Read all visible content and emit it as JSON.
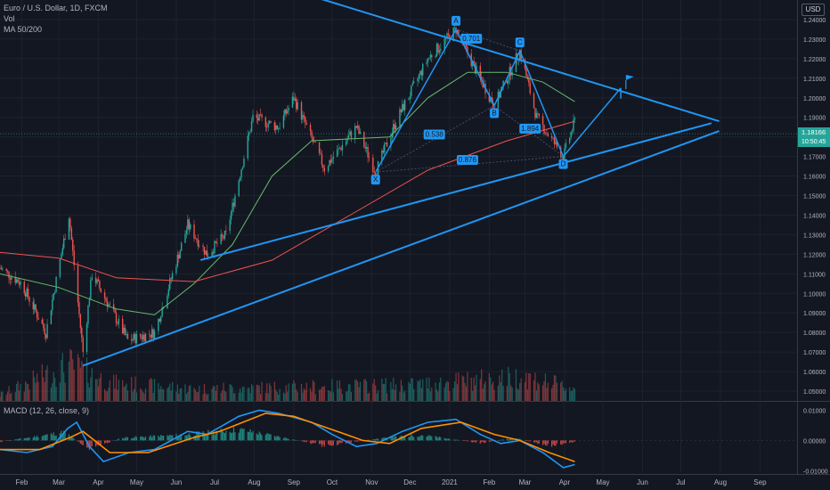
{
  "header": {
    "symbol": "Euro / U.S. Dollar, 1D, FXCM",
    "vol_label": "Vol",
    "ma_label": "MA 50/200",
    "currency": "USD",
    "macd_label": "MACD (12, 26, close, 9)"
  },
  "price_tag": {
    "price": "1.18166",
    "countdown": "10:50:45"
  },
  "colors": {
    "background": "#131722",
    "up": "#26a69a",
    "down": "#ef5350",
    "ma50": "#66bb6a",
    "ma200": "#ef5350",
    "drawing": "#2196f3",
    "macd": "#2196f3",
    "signal": "#ff8f00"
  },
  "chart_data": [
    {
      "type": "line",
      "panel": "price",
      "title": "Euro / U.S. Dollar, 1D, FXCM",
      "x_axis": {
        "type": "date",
        "range": [
          "2020-01-15",
          "2021-09-30"
        ],
        "tick_labels": [
          {
            "date": "2020-02-01",
            "label": "Feb"
          },
          {
            "date": "2020-03-01",
            "label": "Mar"
          },
          {
            "date": "2020-04-01",
            "label": "Apr"
          },
          {
            "date": "2020-05-01",
            "label": "May"
          },
          {
            "date": "2020-06-01",
            "label": "Jun"
          },
          {
            "date": "2020-07-01",
            "label": "Jul"
          },
          {
            "date": "2020-08-01",
            "label": "Aug"
          },
          {
            "date": "2020-09-01",
            "label": "Sep"
          },
          {
            "date": "2020-10-01",
            "label": "Oct"
          },
          {
            "date": "2020-11-01",
            "label": "Nov"
          },
          {
            "date": "2020-12-01",
            "label": "Dec"
          },
          {
            "date": "2021-01-01",
            "label": "2021"
          },
          {
            "date": "2021-02-01",
            "label": "Feb"
          },
          {
            "date": "2021-03-01",
            "label": "Mar"
          },
          {
            "date": "2021-04-01",
            "label": "Apr"
          },
          {
            "date": "2021-05-01",
            "label": "May"
          },
          {
            "date": "2021-06-01",
            "label": "Jun"
          },
          {
            "date": "2021-07-01",
            "label": "Jul"
          },
          {
            "date": "2021-08-01",
            "label": "Aug"
          },
          {
            "date": "2021-09-01",
            "label": "Sep"
          }
        ]
      },
      "y_axis": {
        "range": [
          1.045,
          1.25
        ],
        "tick_labels": [
          "1.24000",
          "1.23000",
          "1.22000",
          "1.21000",
          "1.20000",
          "1.19000",
          "1.18000",
          "1.17000",
          "1.16000",
          "1.15000",
          "1.14000",
          "1.13000",
          "1.12000",
          "1.11000",
          "1.10000",
          "1.09000",
          "1.08000",
          "1.07000",
          "1.06000",
          "1.05000"
        ],
        "last_price": 1.18166
      },
      "price_path": [
        [
          "2020-01-15",
          1.113
        ],
        [
          "2020-02-01",
          1.105
        ],
        [
          "2020-02-20",
          1.08
        ],
        [
          "2020-03-09",
          1.14
        ],
        [
          "2020-03-20",
          1.07
        ],
        [
          "2020-03-27",
          1.11
        ],
        [
          "2020-04-24",
          1.076
        ],
        [
          "2020-05-15",
          1.08
        ],
        [
          "2020-06-10",
          1.135
        ],
        [
          "2020-06-25",
          1.12
        ],
        [
          "2020-07-10",
          1.13
        ],
        [
          "2020-07-31",
          1.19
        ],
        [
          "2020-08-20",
          1.185
        ],
        [
          "2020-09-01",
          1.2
        ],
        [
          "2020-09-25",
          1.164
        ],
        [
          "2020-10-20",
          1.185
        ],
        [
          "2020-11-04",
          1.162
        ],
        [
          "2020-11-20",
          1.188
        ],
        [
          "2020-12-15",
          1.22
        ],
        [
          "2021-01-06",
          1.235
        ],
        [
          "2021-01-20",
          1.216
        ],
        [
          "2021-02-05",
          1.196
        ],
        [
          "2021-02-25",
          1.224
        ],
        [
          "2021-03-10",
          1.19
        ],
        [
          "2021-03-31",
          1.17
        ],
        [
          "2021-04-09",
          1.188
        ]
      ],
      "series": [
        {
          "name": "MA 50",
          "values": [
            [
              "2020-01-15",
              1.11
            ],
            [
              "2020-03-01",
              1.103
            ],
            [
              "2020-04-15",
              1.092
            ],
            [
              "2020-05-15",
              1.089
            ],
            [
              "2020-06-15",
              1.105
            ],
            [
              "2020-07-15",
              1.125
            ],
            [
              "2020-08-15",
              1.16
            ],
            [
              "2020-09-15",
              1.178
            ],
            [
              "2020-10-15",
              1.179
            ],
            [
              "2020-11-15",
              1.18
            ],
            [
              "2020-12-15",
              1.2
            ],
            [
              "2021-01-15",
              1.213
            ],
            [
              "2021-02-15",
              1.213
            ],
            [
              "2021-03-15",
              1.208
            ],
            [
              "2021-04-09",
              1.198
            ]
          ]
        },
        {
          "name": "MA 200",
          "values": [
            [
              "2020-01-15",
              1.121
            ],
            [
              "2020-03-01",
              1.118
            ],
            [
              "2020-04-15",
              1.108
            ],
            [
              "2020-06-15",
              1.106
            ],
            [
              "2020-08-15",
              1.117
            ],
            [
              "2020-10-15",
              1.14
            ],
            [
              "2020-12-15",
              1.163
            ],
            [
              "2021-02-15",
              1.178
            ],
            [
              "2021-04-09",
              1.188
            ]
          ]
        }
      ],
      "volume_range": [
        0,
        1
      ],
      "volume_path": [
        [
          "2020-01-15",
          0.15
        ],
        [
          "2020-03-10",
          0.9
        ],
        [
          "2020-04-10",
          0.45
        ],
        [
          "2020-06-15",
          0.3
        ],
        [
          "2020-09-15",
          0.35
        ],
        [
          "2020-12-01",
          0.4
        ],
        [
          "2021-03-01",
          0.6
        ],
        [
          "2021-04-09",
          0.3
        ]
      ],
      "harmonic_pattern": {
        "points": [
          {
            "label": "X",
            "date": "2020-11-04",
            "price": 1.162
          },
          {
            "label": "A",
            "date": "2021-01-06",
            "price": 1.235
          },
          {
            "label": "B",
            "date": "2021-02-05",
            "price": 1.196
          },
          {
            "label": "C",
            "date": "2021-02-25",
            "price": 1.224
          },
          {
            "label": "D",
            "date": "2021-03-31",
            "price": 1.17
          }
        ],
        "ratios": [
          {
            "label": "0.538",
            "date": "2020-12-20",
            "price": 1.181
          },
          {
            "label": "0.701",
            "date": "2021-01-18",
            "price": 1.23
          },
          {
            "label": "1.894",
            "date": "2021-03-05",
            "price": 1.184
          },
          {
            "label": "0.876",
            "date": "2021-01-15",
            "price": 1.168
          }
        ],
        "projection": [
          [
            "2021-03-31",
            1.17
          ],
          [
            "2021-05-15",
            1.205
          ]
        ],
        "flag": {
          "date": "2021-05-19",
          "price": 1.209
        }
      },
      "trendlines": [
        {
          "name": "upper-resistance",
          "from": [
            "2020-09-15",
            1.252
          ],
          "to": [
            "2021-07-31",
            1.188
          ]
        },
        {
          "name": "support-1",
          "from": [
            "2020-06-20",
            1.117
          ],
          "to": [
            "2021-07-25",
            1.187
          ]
        },
        {
          "name": "support-2",
          "from": [
            "2020-03-20",
            1.063
          ],
          "to": [
            "2021-07-31",
            1.183
          ]
        }
      ]
    },
    {
      "type": "line",
      "panel": "macd",
      "title": "MACD (12, 26, close, 9)",
      "y_axis": {
        "range": [
          -0.0105,
          0.0125
        ],
        "tick_labels": [
          "0.01000",
          "0.00000",
          "-0.01000"
        ]
      },
      "series": [
        {
          "name": "MACD",
          "values": [
            [
              "2020-01-15",
              -0.003
            ],
            [
              "2020-02-05",
              -0.004
            ],
            [
              "2020-02-25",
              -0.002
            ],
            [
              "2020-03-08",
              0.004
            ],
            [
              "2020-03-15",
              0.006
            ],
            [
              "2020-03-25",
              -0.002
            ],
            [
              "2020-04-05",
              -0.007
            ],
            [
              "2020-04-25",
              -0.004
            ],
            [
              "2020-05-15",
              -0.003
            ],
            [
              "2020-06-10",
              0.003
            ],
            [
              "2020-06-25",
              0.002
            ],
            [
              "2020-07-20",
              0.008
            ],
            [
              "2020-08-05",
              0.01
            ],
            [
              "2020-08-20",
              0.009
            ],
            [
              "2020-09-15",
              0.006
            ],
            [
              "2020-10-01",
              0.002
            ],
            [
              "2020-10-20",
              -0.002
            ],
            [
              "2020-11-05",
              -0.001
            ],
            [
              "2020-11-25",
              0.003
            ],
            [
              "2020-12-15",
              0.006
            ],
            [
              "2021-01-06",
              0.007
            ],
            [
              "2021-01-25",
              0.002
            ],
            [
              "2021-02-10",
              -0.001
            ],
            [
              "2021-02-25",
              0.0
            ],
            [
              "2021-03-15",
              -0.004
            ],
            [
              "2021-03-31",
              -0.009
            ],
            [
              "2021-04-09",
              -0.008
            ]
          ]
        },
        {
          "name": "Signal",
          "values": [
            [
              "2020-01-15",
              -0.003
            ],
            [
              "2020-02-15",
              -0.003
            ],
            [
              "2020-03-10",
              0.001
            ],
            [
              "2020-03-20",
              0.003
            ],
            [
              "2020-04-10",
              -0.004
            ],
            [
              "2020-05-10",
              -0.004
            ],
            [
              "2020-06-15",
              0.001
            ],
            [
              "2020-07-05",
              0.003
            ],
            [
              "2020-08-10",
              0.009
            ],
            [
              "2020-09-01",
              0.008
            ],
            [
              "2020-10-05",
              0.003
            ],
            [
              "2020-10-25",
              0.0
            ],
            [
              "2020-11-15",
              -0.001
            ],
            [
              "2020-12-10",
              0.004
            ],
            [
              "2021-01-10",
              0.006
            ],
            [
              "2021-02-05",
              0.002
            ],
            [
              "2021-02-25",
              0.0
            ],
            [
              "2021-03-20",
              -0.004
            ],
            [
              "2021-04-09",
              -0.007
            ]
          ]
        }
      ],
      "histogram_path": [
        [
          "2020-01-15",
          -0.0005
        ],
        [
          "2020-03-05",
          0.003
        ],
        [
          "2020-03-25",
          -0.003
        ],
        [
          "2020-04-20",
          0.001
        ],
        [
          "2020-06-05",
          0.002
        ],
        [
          "2020-07-20",
          0.004
        ],
        [
          "2020-08-25",
          0.001
        ],
        [
          "2020-09-25",
          -0.002
        ],
        [
          "2020-11-10",
          0.001
        ],
        [
          "2020-12-10",
          0.002
        ],
        [
          "2021-01-25",
          -0.001
        ],
        [
          "2021-02-20",
          0.001
        ],
        [
          "2021-03-20",
          -0.002
        ],
        [
          "2021-04-09",
          -0.0005
        ]
      ]
    }
  ]
}
